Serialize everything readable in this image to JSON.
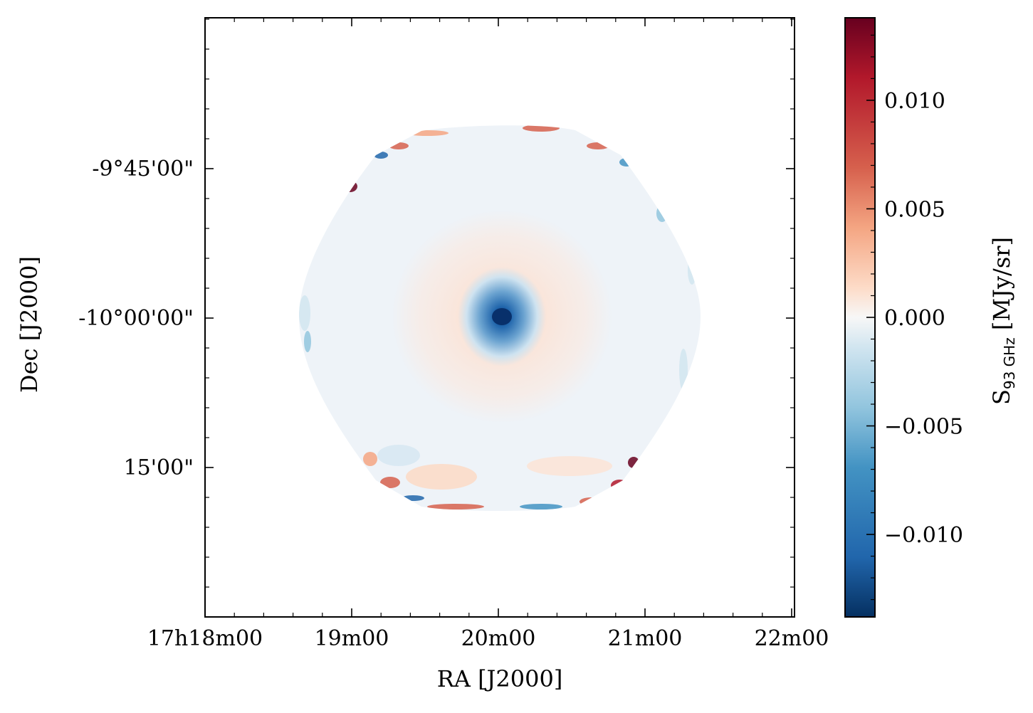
{
  "chart_data": {
    "type": "heatmap",
    "title": "",
    "xlabel": "RA [J2000]",
    "ylabel": "Dec [J2000]",
    "colorbar_label": {
      "main": "S",
      "sub": "93 GHz",
      "units": " [MJy/sr]"
    },
    "colormap": "RdBu_r",
    "colorbar_range": [
      -0.0138,
      0.0138
    ],
    "colorbar_ticks": [
      {
        "value": 0.01,
        "label": "0.010"
      },
      {
        "value": 0.005,
        "label": "0.005"
      },
      {
        "value": 0.0,
        "label": "0.000"
      },
      {
        "value": -0.005,
        "label": "−0.005"
      },
      {
        "value": -0.01,
        "label": "−0.010"
      }
    ],
    "x_ticks": [
      "17h18m00",
      "19m00",
      "20m00",
      "21m00",
      "22m00"
    ],
    "y_ticks": [
      "-9°45'00\"",
      "-10°00'00\"",
      "15'00\""
    ],
    "map_description_values": {
      "center_min": -0.0135,
      "ring_level": 0.0012,
      "background_level": -0.0008,
      "edge_peak_max": 0.0135
    }
  }
}
